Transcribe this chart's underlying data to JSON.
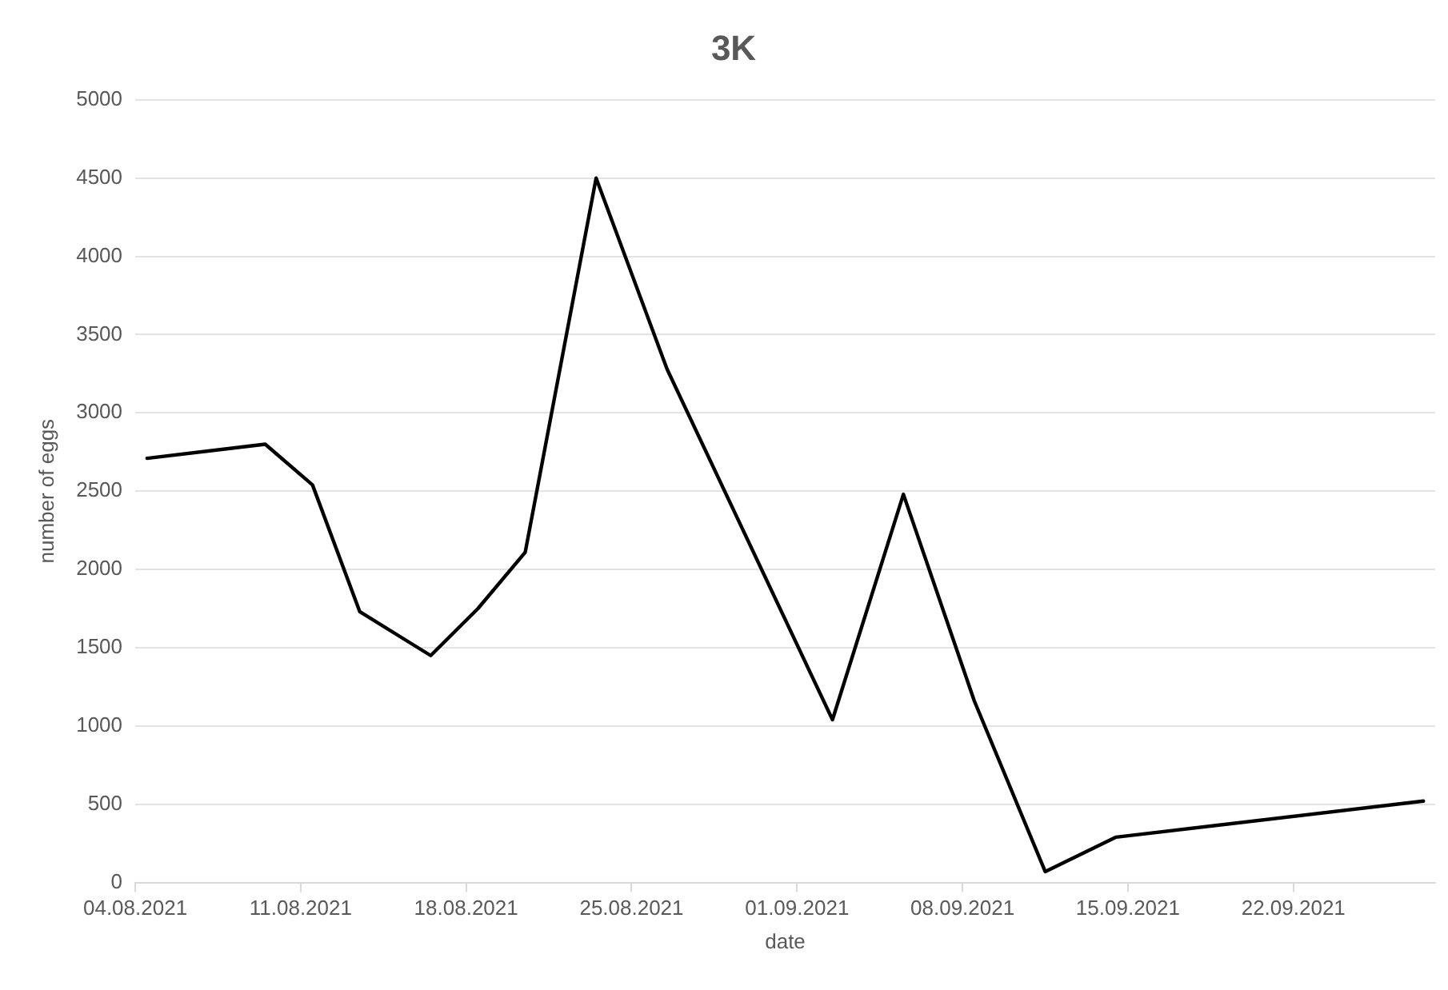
{
  "chart_data": {
    "type": "line",
    "title": "3K",
    "xlabel": "date",
    "ylabel": "number of eggs",
    "x": [
      "2021-08-04T12:00",
      "2021-08-09T12:00",
      "2021-08-11T12:00",
      "2021-08-13T12:00",
      "2021-08-16T12:00",
      "2021-08-18T12:00",
      "2021-08-20T12:00",
      "2021-08-23T12:00",
      "2021-08-26T12:00",
      "2021-09-02T12:00",
      "2021-09-05T12:00",
      "2021-09-08T12:00",
      "2021-09-11T12:00",
      "2021-09-14T12:00",
      "2021-09-27T12:00"
    ],
    "series": [
      {
        "color": "#000000",
        "values": [
          2710,
          2800,
          2540,
          1730,
          1450,
          1750,
          2110,
          4500,
          3280,
          1040,
          2480,
          1160,
          70,
          290,
          520
        ]
      }
    ],
    "xlim": [
      "2021-08-04",
      "2021-09-28"
    ],
    "xticks": [
      {
        "value": "2021-08-04",
        "label": "04.08.2021"
      },
      {
        "value": "2021-08-11",
        "label": "11.08.2021"
      },
      {
        "value": "2021-08-18",
        "label": "18.08.2021"
      },
      {
        "value": "2021-08-25",
        "label": "25.08.2021"
      },
      {
        "value": "2021-09-01",
        "label": "01.09.2021"
      },
      {
        "value": "2021-09-08",
        "label": "08.09.2021"
      },
      {
        "value": "2021-09-15",
        "label": "15.09.2021"
      },
      {
        "value": "2021-09-22",
        "label": "22.09.2021"
      }
    ],
    "ylim": [
      0,
      5000
    ],
    "yticks": [
      0,
      500,
      1000,
      1500,
      2000,
      2500,
      3000,
      3500,
      4000,
      4500,
      5000
    ],
    "grid": "y",
    "legend": false,
    "marker": "none",
    "line_style": "solid"
  }
}
